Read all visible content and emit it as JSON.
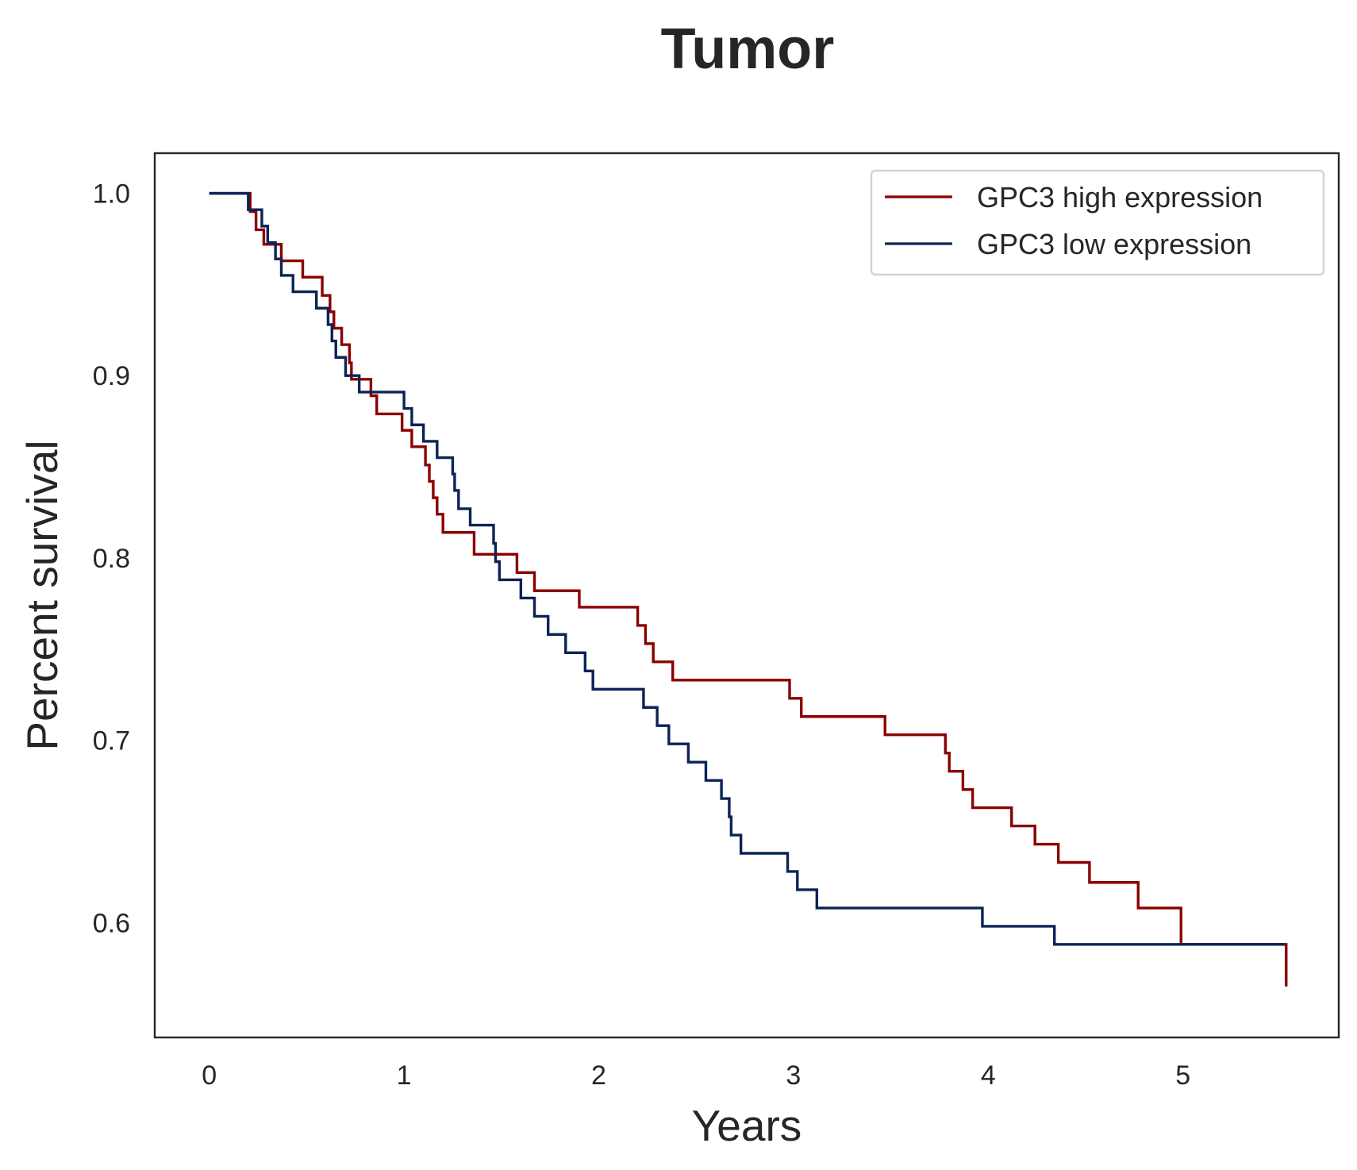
{
  "chart_data": {
    "type": "line",
    "step": "post",
    "title": "Tumor",
    "xlabel": "Years",
    "ylabel": "Percent survival",
    "xlim": [
      -0.28,
      5.8
    ],
    "ylim": [
      0.537,
      1.022
    ],
    "xticks": [
      0,
      1,
      2,
      3,
      4,
      5
    ],
    "xtick_labels": [
      "0",
      "1",
      "2",
      "3",
      "4",
      "5"
    ],
    "yticks": [
      0.6,
      0.7,
      0.8,
      0.9,
      1.0
    ],
    "ytick_labels": [
      "0.6",
      "0.7",
      "0.8",
      "0.9",
      "1.0"
    ],
    "grid": false,
    "legend_position": "top-right",
    "series": [
      {
        "name": "GPC3 high expression",
        "color": "#8b0000",
        "x": [
          0,
          0.21,
          0.24,
          0.28,
          0.37,
          0.48,
          0.58,
          0.62,
          0.64,
          0.68,
          0.72,
          0.73,
          0.83,
          0.86,
          0.99,
          1.04,
          1.11,
          1.13,
          1.15,
          1.17,
          1.2,
          1.36,
          1.58,
          1.67,
          1.9,
          2.2,
          2.24,
          2.28,
          2.38,
          2.98,
          3.04,
          3.47,
          3.78,
          3.8,
          3.87,
          3.92,
          4.12,
          4.24,
          4.36,
          4.52,
          4.77,
          4.99,
          5.53
        ],
        "y": [
          1.0,
          0.99,
          0.98,
          0.972,
          0.963,
          0.954,
          0.944,
          0.935,
          0.926,
          0.917,
          0.907,
          0.898,
          0.889,
          0.879,
          0.87,
          0.861,
          0.851,
          0.842,
          0.833,
          0.824,
          0.814,
          0.802,
          0.792,
          0.782,
          0.773,
          0.763,
          0.753,
          0.743,
          0.733,
          0.723,
          0.713,
          0.703,
          0.693,
          0.683,
          0.673,
          0.663,
          0.653,
          0.643,
          0.633,
          0.622,
          0.608,
          0.588,
          0.565
        ]
      },
      {
        "name": "GPC3 low expression",
        "color": "#0c2356",
        "x": [
          0,
          0.2,
          0.27,
          0.3,
          0.34,
          0.37,
          0.43,
          0.55,
          0.61,
          0.63,
          0.65,
          0.7,
          0.77,
          1.0,
          1.04,
          1.1,
          1.17,
          1.25,
          1.26,
          1.28,
          1.34,
          1.46,
          1.47,
          1.49,
          1.6,
          1.67,
          1.74,
          1.83,
          1.93,
          1.97,
          2.23,
          2.3,
          2.36,
          2.46,
          2.55,
          2.63,
          2.67,
          2.68,
          2.73,
          2.97,
          3.02,
          3.12,
          3.97,
          4.34,
          4.38,
          5.52
        ],
        "y": [
          1.0,
          0.991,
          0.982,
          0.973,
          0.964,
          0.955,
          0.946,
          0.937,
          0.928,
          0.919,
          0.91,
          0.9,
          0.891,
          0.882,
          0.873,
          0.864,
          0.855,
          0.846,
          0.837,
          0.827,
          0.818,
          0.808,
          0.798,
          0.788,
          0.778,
          0.768,
          0.758,
          0.748,
          0.738,
          0.728,
          0.718,
          0.708,
          0.698,
          0.688,
          0.678,
          0.668,
          0.658,
          0.648,
          0.638,
          0.628,
          0.618,
          0.608,
          0.598,
          0.588,
          0.588,
          0.588
        ]
      }
    ]
  }
}
